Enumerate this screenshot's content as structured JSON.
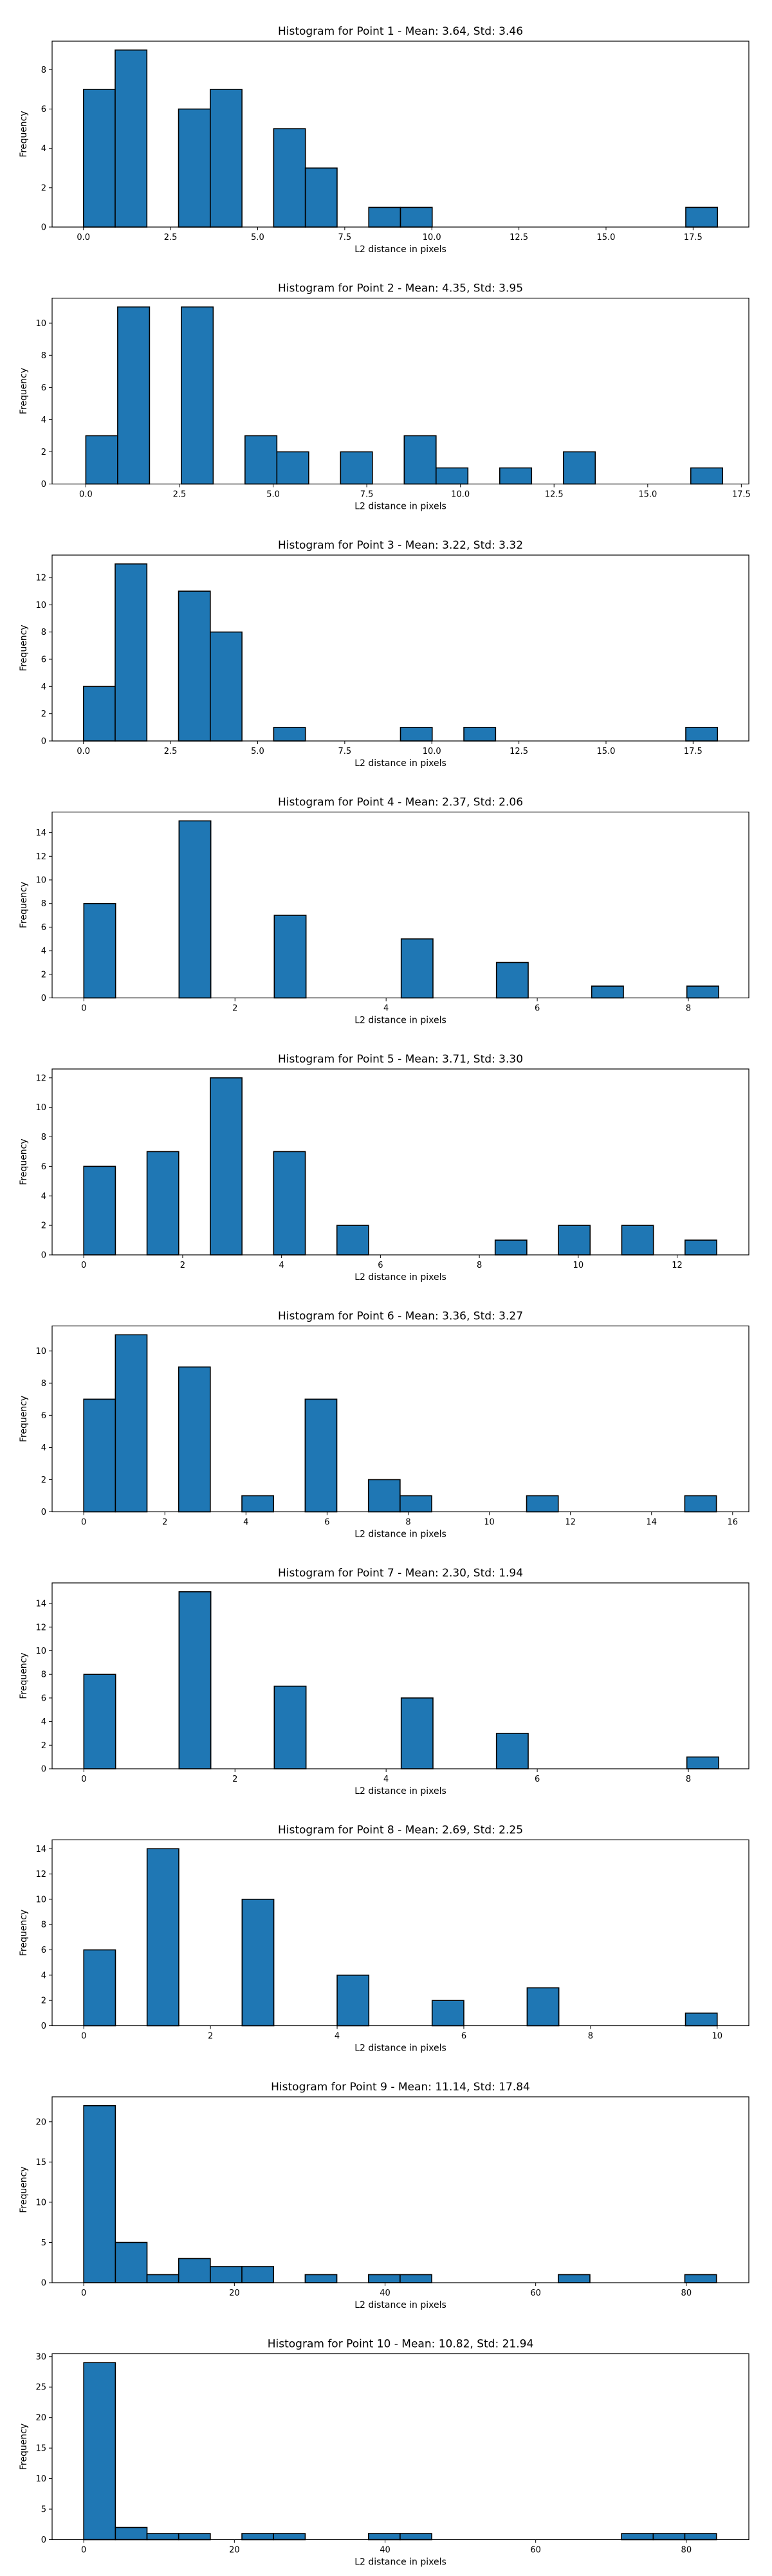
{
  "colors": {
    "bar_fill": "#1f77b4",
    "bar_edge": "#000000",
    "axes": "#000000",
    "background": "#ffffff"
  },
  "chart_data": [
    {
      "type": "bar",
      "title": "Histogram for Point 1 - Mean: 3.64, Std: 3.46",
      "xlabel": "L2 distance in pixels",
      "ylabel": "Frequency",
      "xlim": [
        -0.9,
        19.1
      ],
      "ylim": [
        0,
        9.45
      ],
      "xticks": [
        0,
        2.5,
        5,
        7.5,
        10,
        12.5,
        15,
        17.5
      ],
      "xtick_labels": [
        "0.0",
        "2.5",
        "5.0",
        "7.5",
        "10.0",
        "12.5",
        "15.0",
        "17.5"
      ],
      "yticks": [
        0,
        2,
        4,
        6,
        8
      ],
      "ytick_labels": [
        "0",
        "2",
        "4",
        "6",
        "8"
      ],
      "bins": [
        {
          "x0": 0.0,
          "x1": 0.91,
          "count": 7
        },
        {
          "x0": 0.91,
          "x1": 1.82,
          "count": 9
        },
        {
          "x0": 2.73,
          "x1": 3.64,
          "count": 6
        },
        {
          "x0": 3.64,
          "x1": 4.55,
          "count": 7
        },
        {
          "x0": 5.46,
          "x1": 6.37,
          "count": 5
        },
        {
          "x0": 6.37,
          "x1": 7.28,
          "count": 3
        },
        {
          "x0": 8.19,
          "x1": 9.1,
          "count": 1
        },
        {
          "x0": 9.1,
          "x1": 10.01,
          "count": 1
        },
        {
          "x0": 17.29,
          "x1": 18.2,
          "count": 1
        }
      ]
    },
    {
      "type": "bar",
      "title": "Histogram for Point 2 - Mean: 4.35, Std: 3.95",
      "xlabel": "L2 distance in pixels",
      "ylabel": "Frequency",
      "xlim": [
        -0.9,
        17.7
      ],
      "ylim": [
        0,
        11.55
      ],
      "xticks": [
        0,
        2.5,
        5,
        7.5,
        10,
        12.5,
        15,
        17.5
      ],
      "xtick_labels": [
        "0.0",
        "2.5",
        "5.0",
        "7.5",
        "10.0",
        "12.5",
        "15.0",
        "17.5"
      ],
      "yticks": [
        0,
        2,
        4,
        6,
        8,
        10
      ],
      "ytick_labels": [
        "0",
        "2",
        "4",
        "6",
        "8",
        "10"
      ],
      "bins": [
        {
          "x0": 0.0,
          "x1": 0.85,
          "count": 3
        },
        {
          "x0": 0.85,
          "x1": 1.7,
          "count": 11
        },
        {
          "x0": 2.55,
          "x1": 3.4,
          "count": 11
        },
        {
          "x0": 4.25,
          "x1": 5.1,
          "count": 3
        },
        {
          "x0": 5.1,
          "x1": 5.95,
          "count": 2
        },
        {
          "x0": 6.8,
          "x1": 7.65,
          "count": 2
        },
        {
          "x0": 8.5,
          "x1": 9.35,
          "count": 3
        },
        {
          "x0": 9.35,
          "x1": 10.2,
          "count": 1
        },
        {
          "x0": 11.05,
          "x1": 11.9,
          "count": 1
        },
        {
          "x0": 12.75,
          "x1": 13.6,
          "count": 2
        },
        {
          "x0": 16.15,
          "x1": 17.0,
          "count": 1
        }
      ]
    },
    {
      "type": "bar",
      "title": "Histogram for Point 3 - Mean: 3.22, Std: 3.32",
      "xlabel": "L2 distance in pixels",
      "ylabel": "Frequency",
      "xlim": [
        -0.9,
        19.1
      ],
      "ylim": [
        0,
        13.65
      ],
      "xticks": [
        0,
        2.5,
        5,
        7.5,
        10,
        12.5,
        15,
        17.5
      ],
      "xtick_labels": [
        "0.0",
        "2.5",
        "5.0",
        "7.5",
        "10.0",
        "12.5",
        "15.0",
        "17.5"
      ],
      "yticks": [
        0,
        2,
        4,
        6,
        8,
        10,
        12
      ],
      "ytick_labels": [
        "0",
        "2",
        "4",
        "6",
        "8",
        "10",
        "12"
      ],
      "bins": [
        {
          "x0": 0.0,
          "x1": 0.91,
          "count": 4
        },
        {
          "x0": 0.91,
          "x1": 1.82,
          "count": 13
        },
        {
          "x0": 2.73,
          "x1": 3.64,
          "count": 11
        },
        {
          "x0": 3.64,
          "x1": 4.55,
          "count": 8
        },
        {
          "x0": 5.46,
          "x1": 6.37,
          "count": 1
        },
        {
          "x0": 9.1,
          "x1": 10.01,
          "count": 1
        },
        {
          "x0": 10.92,
          "x1": 11.83,
          "count": 1
        },
        {
          "x0": 17.29,
          "x1": 18.2,
          "count": 1
        }
      ]
    },
    {
      "type": "bar",
      "title": "Histogram for Point 4 - Mean: 2.37, Std: 2.06",
      "xlabel": "L2 distance in pixels",
      "ylabel": "Frequency",
      "xlim": [
        -0.42,
        8.8
      ],
      "ylim": [
        0,
        15.75
      ],
      "xticks": [
        0,
        2,
        4,
        6,
        8
      ],
      "xtick_labels": [
        "0",
        "2",
        "4",
        "6",
        "8"
      ],
      "yticks": [
        0,
        2,
        4,
        6,
        8,
        10,
        12,
        14
      ],
      "ytick_labels": [
        "0",
        "2",
        "4",
        "6",
        "8",
        "10",
        "12",
        "14"
      ],
      "bins": [
        {
          "x0": 0.0,
          "x1": 0.42,
          "count": 8
        },
        {
          "x0": 1.26,
          "x1": 1.68,
          "count": 15
        },
        {
          "x0": 2.52,
          "x1": 2.94,
          "count": 7
        },
        {
          "x0": 4.2,
          "x1": 4.62,
          "count": 5
        },
        {
          "x0": 5.46,
          "x1": 5.88,
          "count": 3
        },
        {
          "x0": 6.72,
          "x1": 7.14,
          "count": 1
        },
        {
          "x0": 7.98,
          "x1": 8.4,
          "count": 1
        }
      ]
    },
    {
      "type": "bar",
      "title": "Histogram for Point 5 - Mean: 3.71, Std: 3.30",
      "xlabel": "L2 distance in pixels",
      "ylabel": "Frequency",
      "xlim": [
        -0.64,
        13.45
      ],
      "ylim": [
        0,
        12.6
      ],
      "xticks": [
        0,
        2,
        4,
        6,
        8,
        10,
        12
      ],
      "xtick_labels": [
        "0",
        "2",
        "4",
        "6",
        "8",
        "10",
        "12"
      ],
      "yticks": [
        0,
        2,
        4,
        6,
        8,
        10,
        12
      ],
      "ytick_labels": [
        "0",
        "2",
        "4",
        "6",
        "8",
        "10",
        "12"
      ],
      "bins": [
        {
          "x0": 0.0,
          "x1": 0.64,
          "count": 6
        },
        {
          "x0": 1.28,
          "x1": 1.92,
          "count": 7
        },
        {
          "x0": 2.56,
          "x1": 3.2,
          "count": 12
        },
        {
          "x0": 3.84,
          "x1": 4.48,
          "count": 7
        },
        {
          "x0": 5.12,
          "x1": 5.76,
          "count": 2
        },
        {
          "x0": 8.32,
          "x1": 8.96,
          "count": 1
        },
        {
          "x0": 9.6,
          "x1": 10.24,
          "count": 2
        },
        {
          "x0": 10.88,
          "x1": 11.52,
          "count": 2
        },
        {
          "x0": 12.16,
          "x1": 12.8,
          "count": 1
        }
      ]
    },
    {
      "type": "bar",
      "title": "Histogram for Point 6 - Mean: 3.36, Std: 3.27",
      "xlabel": "L2 distance in pixels",
      "ylabel": "Frequency",
      "xlim": [
        -0.78,
        16.4
      ],
      "ylim": [
        0,
        11.55
      ],
      "xticks": [
        0,
        2,
        4,
        6,
        8,
        10,
        12,
        14,
        16
      ],
      "xtick_labels": [
        "0",
        "2",
        "4",
        "6",
        "8",
        "10",
        "12",
        "14",
        "16"
      ],
      "yticks": [
        0,
        2,
        4,
        6,
        8,
        10
      ],
      "ytick_labels": [
        "0",
        "2",
        "4",
        "6",
        "8",
        "10"
      ],
      "bins": [
        {
          "x0": 0.0,
          "x1": 0.78,
          "count": 7
        },
        {
          "x0": 0.78,
          "x1": 1.56,
          "count": 11
        },
        {
          "x0": 2.34,
          "x1": 3.12,
          "count": 9
        },
        {
          "x0": 3.9,
          "x1": 4.68,
          "count": 1
        },
        {
          "x0": 5.46,
          "x1": 6.24,
          "count": 7
        },
        {
          "x0": 7.02,
          "x1": 7.8,
          "count": 2
        },
        {
          "x0": 7.8,
          "x1": 8.58,
          "count": 1
        },
        {
          "x0": 10.92,
          "x1": 11.7,
          "count": 1
        },
        {
          "x0": 14.82,
          "x1": 15.6,
          "count": 1
        }
      ]
    },
    {
      "type": "bar",
      "title": "Histogram for Point 7 - Mean: 2.30, Std: 1.94",
      "xlabel": "L2 distance in pixels",
      "ylabel": "Frequency",
      "xlim": [
        -0.42,
        8.8
      ],
      "ylim": [
        0,
        15.75
      ],
      "xticks": [
        0,
        2,
        4,
        6,
        8
      ],
      "xtick_labels": [
        "0",
        "2",
        "4",
        "6",
        "8"
      ],
      "yticks": [
        0,
        2,
        4,
        6,
        8,
        10,
        12,
        14
      ],
      "ytick_labels": [
        "0",
        "2",
        "4",
        "6",
        "8",
        "10",
        "12",
        "14"
      ],
      "bins": [
        {
          "x0": 0.0,
          "x1": 0.42,
          "count": 8
        },
        {
          "x0": 1.26,
          "x1": 1.68,
          "count": 15
        },
        {
          "x0": 2.52,
          "x1": 2.94,
          "count": 7
        },
        {
          "x0": 4.2,
          "x1": 4.62,
          "count": 6
        },
        {
          "x0": 5.46,
          "x1": 5.88,
          "count": 3
        },
        {
          "x0": 7.98,
          "x1": 8.4,
          "count": 1
        }
      ]
    },
    {
      "type": "bar",
      "title": "Histogram for Point 8 - Mean: 2.69, Std: 2.25",
      "xlabel": "L2 distance in pixels",
      "ylabel": "Frequency",
      "xlim": [
        -0.5,
        10.5
      ],
      "ylim": [
        0,
        14.7
      ],
      "xticks": [
        0,
        2,
        4,
        6,
        8,
        10
      ],
      "xtick_labels": [
        "0",
        "2",
        "4",
        "6",
        "8",
        "10"
      ],
      "yticks": [
        0,
        2,
        4,
        6,
        8,
        10,
        12,
        14
      ],
      "ytick_labels": [
        "0",
        "2",
        "4",
        "6",
        "8",
        "10",
        "12",
        "14"
      ],
      "bins": [
        {
          "x0": 0.0,
          "x1": 0.5,
          "count": 6
        },
        {
          "x0": 1.0,
          "x1": 1.5,
          "count": 14
        },
        {
          "x0": 2.5,
          "x1": 3.0,
          "count": 10
        },
        {
          "x0": 4.0,
          "x1": 4.5,
          "count": 4
        },
        {
          "x0": 5.5,
          "x1": 6.0,
          "count": 2
        },
        {
          "x0": 7.0,
          "x1": 7.5,
          "count": 3
        },
        {
          "x0": 9.5,
          "x1": 10.0,
          "count": 1
        }
      ]
    },
    {
      "type": "bar",
      "title": "Histogram for Point 9 - Mean: 11.14, Std: 17.84",
      "xlabel": "L2 distance in pixels",
      "ylabel": "Frequency",
      "xlim": [
        -4.2,
        88.3
      ],
      "ylim": [
        0,
        23.1
      ],
      "xticks": [
        0,
        20,
        40,
        60,
        80
      ],
      "xtick_labels": [
        "0",
        "20",
        "40",
        "60",
        "80"
      ],
      "yticks": [
        0,
        5,
        10,
        15,
        20
      ],
      "ytick_labels": [
        "0",
        "5",
        "10",
        "15",
        "20"
      ],
      "bins": [
        {
          "x0": 0.0,
          "x1": 4.2,
          "count": 22
        },
        {
          "x0": 4.2,
          "x1": 8.4,
          "count": 5
        },
        {
          "x0": 8.4,
          "x1": 12.6,
          "count": 1
        },
        {
          "x0": 12.6,
          "x1": 16.8,
          "count": 3
        },
        {
          "x0": 16.8,
          "x1": 21.0,
          "count": 2
        },
        {
          "x0": 21.0,
          "x1": 25.2,
          "count": 2
        },
        {
          "x0": 29.4,
          "x1": 33.6,
          "count": 1
        },
        {
          "x0": 37.8,
          "x1": 42.0,
          "count": 1
        },
        {
          "x0": 42.0,
          "x1": 46.2,
          "count": 1
        },
        {
          "x0": 63.0,
          "x1": 67.2,
          "count": 1
        },
        {
          "x0": 79.8,
          "x1": 84.0,
          "count": 1
        }
      ]
    },
    {
      "type": "bar",
      "title": "Histogram for Point 10 - Mean: 10.82, Std: 21.94",
      "xlabel": "L2 distance in pixels",
      "ylabel": "Frequency",
      "xlim": [
        -4.2,
        88.3
      ],
      "ylim": [
        0,
        30.45
      ],
      "xticks": [
        0,
        20,
        40,
        60,
        80
      ],
      "xtick_labels": [
        "0",
        "20",
        "40",
        "60",
        "80"
      ],
      "yticks": [
        0,
        5,
        10,
        15,
        20,
        25,
        30
      ],
      "ytick_labels": [
        "0",
        "5",
        "10",
        "15",
        "20",
        "25",
        "30"
      ],
      "bins": [
        {
          "x0": 0.0,
          "x1": 4.2,
          "count": 29
        },
        {
          "x0": 4.2,
          "x1": 8.4,
          "count": 2
        },
        {
          "x0": 8.4,
          "x1": 12.6,
          "count": 1
        },
        {
          "x0": 12.6,
          "x1": 16.8,
          "count": 1
        },
        {
          "x0": 21.0,
          "x1": 25.2,
          "count": 1
        },
        {
          "x0": 25.2,
          "x1": 29.4,
          "count": 1
        },
        {
          "x0": 37.8,
          "x1": 42.0,
          "count": 1
        },
        {
          "x0": 42.0,
          "x1": 46.2,
          "count": 1
        },
        {
          "x0": 71.4,
          "x1": 75.6,
          "count": 1
        },
        {
          "x0": 75.6,
          "x1": 79.8,
          "count": 1
        },
        {
          "x0": 79.8,
          "x1": 84.0,
          "count": 1
        }
      ]
    }
  ]
}
